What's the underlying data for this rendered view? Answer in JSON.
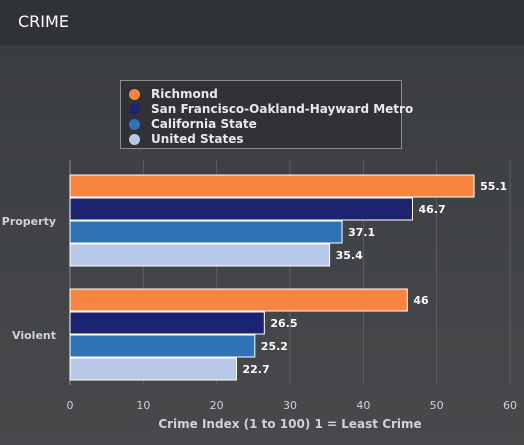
{
  "header": {
    "title": "CRIME"
  },
  "chart_data": {
    "type": "bar",
    "orientation": "horizontal",
    "categories": [
      "Property",
      "Violent"
    ],
    "series": [
      {
        "name": "Richmond",
        "color": "#f7853f",
        "values": [
          55.1,
          46
        ]
      },
      {
        "name": "San Francisco-Oakland-Hayward Metro",
        "color": "#1c2370",
        "values": [
          46.7,
          26.5
        ]
      },
      {
        "name": "California State",
        "color": "#2f73b7",
        "values": [
          37.1,
          25.2
        ]
      },
      {
        "name": "United States",
        "color": "#b7c9e7",
        "values": [
          35.4,
          22.7
        ]
      }
    ],
    "xlabel": "Crime Index (1 to 100) 1 = Least Crime",
    "xlim": [
      0,
      60
    ],
    "xticks": [
      "0",
      "10",
      "20",
      "30",
      "40",
      "50",
      "60"
    ],
    "grid": true,
    "legend": "top-center"
  }
}
